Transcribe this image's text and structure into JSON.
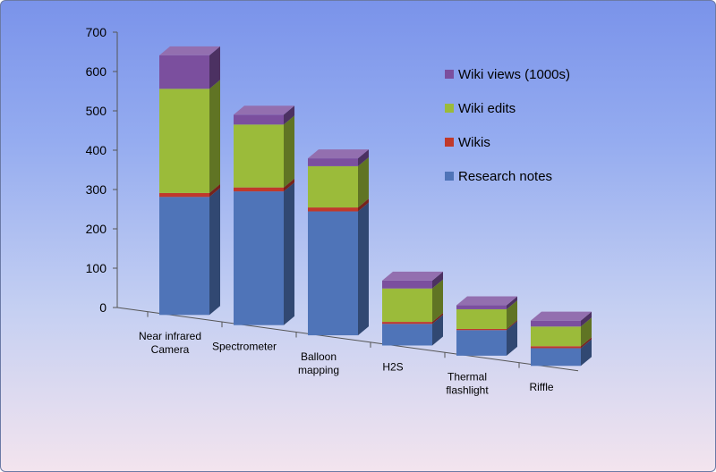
{
  "chart_data": {
    "type": "bar",
    "stacked": true,
    "style": "3d-column",
    "categories": [
      [
        "Near infrared",
        "Camera"
      ],
      [
        "Spectrometer"
      ],
      [
        "Balloon",
        "mapping"
      ],
      [
        "H2S"
      ],
      [
        "Thermal",
        "flashlight"
      ],
      [
        "Riffle"
      ]
    ],
    "series": [
      {
        "name": "Research notes",
        "color": "#4f74b8",
        "values": [
          300,
          340,
          315,
          55,
          65,
          45
        ]
      },
      {
        "name": "Wikis",
        "color": "#c0392b",
        "values": [
          10,
          10,
          10,
          5,
          3,
          5
        ]
      },
      {
        "name": "Wiki edits",
        "color": "#9bbb3a",
        "values": [
          265,
          160,
          105,
          85,
          50,
          50
        ]
      },
      {
        "name": "Wiki views (1000s)",
        "color": "#7b4f9e",
        "values": [
          85,
          25,
          20,
          20,
          10,
          15
        ]
      }
    ],
    "y_ticks": [
      0,
      100,
      200,
      300,
      400,
      500,
      600,
      700
    ],
    "ylim": [
      0,
      700
    ],
    "title": "",
    "xlabel": "",
    "ylabel": "",
    "legend_position": "right",
    "grid": false
  }
}
